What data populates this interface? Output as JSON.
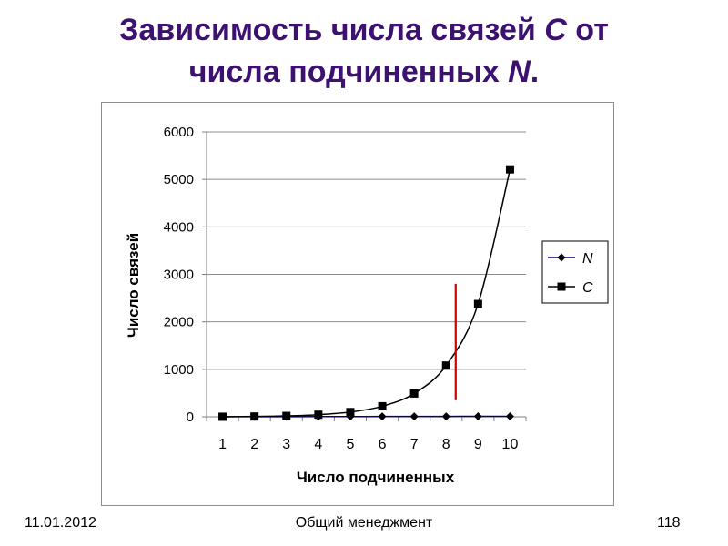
{
  "slide": {
    "title_line1_pre": "Зависимость числа связей ",
    "title_line1_var": "С",
    "title_line1_post": " от",
    "title_line2_pre": "числа подчиненных ",
    "title_line2_var": "N",
    "title_line2_post": "."
  },
  "footer": {
    "date": "11.01.2012",
    "center": "Общий  менеджмент",
    "page": "118"
  },
  "chart_data": {
    "type": "line",
    "x": [
      1,
      2,
      3,
      4,
      5,
      6,
      7,
      8,
      9,
      10
    ],
    "x_tick_labels": [
      "1",
      "2",
      "3",
      "4",
      "5",
      "6",
      "7",
      "8",
      "9",
      "10"
    ],
    "y_tick_labels": [
      "0",
      "1000",
      "2000",
      "3000",
      "4000",
      "5000",
      "6000"
    ],
    "ylim": [
      0,
      6000
    ],
    "xlabel": "Число подчиненных",
    "ylabel": "Число связей",
    "grid": "horizontal",
    "legend_position": "right",
    "series": [
      {
        "name": "N",
        "marker": "diamond",
        "color": "#000080",
        "values": [
          1,
          2,
          3,
          4,
          5,
          6,
          7,
          8,
          9,
          10
        ]
      },
      {
        "name": "C",
        "marker": "square",
        "color": "#000000",
        "values": [
          1,
          6,
          18,
          44,
          100,
          222,
          490,
          1080,
          2376,
          5210
        ]
      }
    ],
    "annotation": {
      "type": "vertical-line",
      "x": 8.3,
      "y_range": [
        350,
        2800
      ],
      "color": "#cc0000"
    }
  }
}
